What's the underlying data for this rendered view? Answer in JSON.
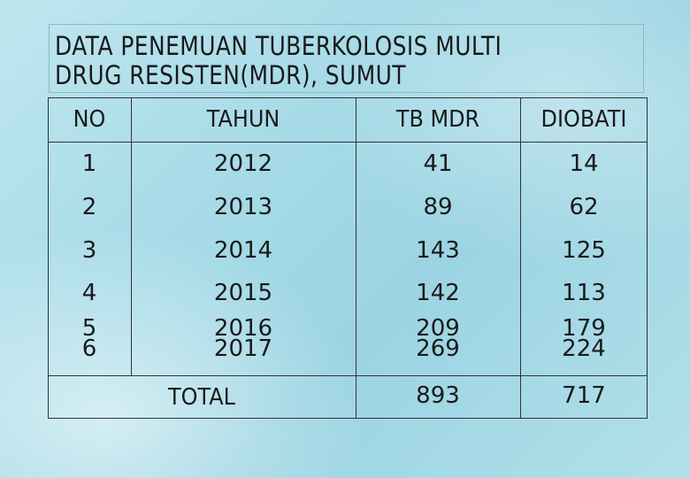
{
  "slide": {
    "title_line1": "DATA PENEMUAN TUBERKOLOSIS MULTI",
    "title_line2": "DRUG RESISTEN(MDR), SUMUT"
  },
  "table": {
    "headers": [
      "NO",
      "TAHUN",
      "TB MDR",
      "DIOBATI"
    ],
    "rows": [
      {
        "no": "1",
        "tahun": "2012",
        "tb_mdr": "41",
        "diobati": "14"
      },
      {
        "no": "2",
        "tahun": "2013",
        "tb_mdr": "89",
        "diobati": "62"
      },
      {
        "no": "3",
        "tahun": "2014",
        "tb_mdr": "143",
        "diobati": "125"
      },
      {
        "no": "4",
        "tahun": "2015",
        "tb_mdr": "142",
        "diobati": "113"
      },
      {
        "no": "5",
        "tahun": "2016",
        "tb_mdr": "209",
        "diobati": "179"
      },
      {
        "no": "6",
        "tahun": "2017",
        "tb_mdr": "269",
        "diobati": "224"
      }
    ],
    "total": {
      "label": "TOTAL",
      "tb_mdr": "893",
      "diobati": "717"
    }
  },
  "colors": {
    "text": "#1a1a1a",
    "grid_line": "#333333",
    "background": "#a7dbe8"
  }
}
